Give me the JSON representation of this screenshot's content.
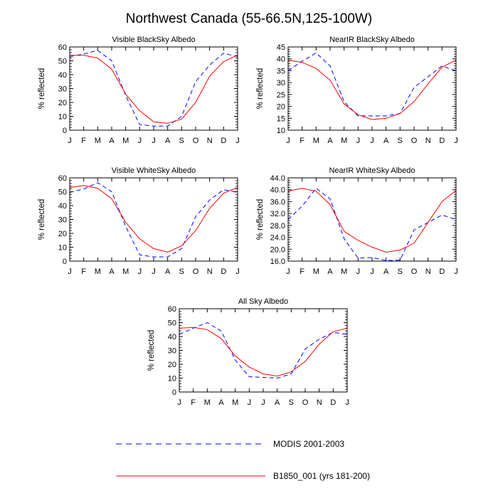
{
  "figure_title": "Northwest Canada (55-66.5N,125-100W)",
  "legend": [
    {
      "label": "MODIS 2001-2003",
      "color": "#0000ff",
      "style": "dashed"
    },
    {
      "label": "B1850_001 (yrs 181-200)",
      "color": "#ff0000",
      "style": "solid"
    }
  ],
  "chart_data": [
    {
      "type": "line",
      "title": "Visible BlackSky Albedo",
      "xlabel": "",
      "ylabel": "% reflected",
      "categories": [
        "J",
        "F",
        "M",
        "A",
        "M",
        "J",
        "J",
        "A",
        "S",
        "O",
        "N",
        "D",
        "J"
      ],
      "ylim": [
        0,
        60
      ],
      "yticks": [
        "0",
        "10",
        "20",
        "30",
        "40",
        "50",
        "60"
      ],
      "series": [
        {
          "name": "MODIS 2001-2003",
          "values": [
            53,
            55,
            57.5,
            50,
            25,
            4,
            3,
            3,
            10,
            35,
            47,
            55.5,
            53
          ]
        },
        {
          "name": "B1850_001 (yrs 181-200)",
          "values": [
            54,
            54,
            52,
            44,
            26,
            14,
            6,
            5,
            8,
            20,
            39,
            49.5,
            54
          ]
        }
      ]
    },
    {
      "type": "line",
      "title": "NearIR BlackSky Albedo",
      "xlabel": "",
      "ylabel": "% reflected",
      "categories": [
        "J",
        "F",
        "M",
        "A",
        "M",
        "J",
        "J",
        "A",
        "S",
        "O",
        "N",
        "D",
        "J"
      ],
      "ylim": [
        10,
        45
      ],
      "yticks": [
        "10",
        "15",
        "20",
        "25",
        "30",
        "35",
        "40",
        "45"
      ],
      "series": [
        {
          "name": "MODIS 2001-2003",
          "values": [
            35,
            39,
            42.5,
            37,
            22,
            16,
            16,
            16,
            17,
            28,
            32.5,
            37,
            35
          ]
        },
        {
          "name": "B1850_001 (yrs 181-200)",
          "values": [
            39.5,
            38.5,
            36,
            31,
            21,
            16.5,
            14.5,
            15,
            17,
            22,
            29.5,
            36.5,
            39.5
          ]
        }
      ]
    },
    {
      "type": "line",
      "title": "Visible WhiteSky Albedo",
      "xlabel": "",
      "ylabel": "% reflected",
      "categories": [
        "J",
        "F",
        "M",
        "A",
        "M",
        "J",
        "J",
        "A",
        "S",
        "O",
        "N",
        "D",
        "J"
      ],
      "ylim": [
        0,
        60
      ],
      "yticks": [
        "0",
        "10",
        "20",
        "30",
        "40",
        "50",
        "60"
      ],
      "series": [
        {
          "name": "MODIS 2001-2003",
          "values": [
            49.5,
            52,
            56.5,
            50,
            25,
            4.5,
            3,
            3,
            9,
            32,
            44,
            51.5,
            49.5
          ]
        },
        {
          "name": "B1850_001 (yrs 181-200)",
          "values": [
            53,
            54.5,
            52.5,
            45,
            28,
            16,
            9,
            6.5,
            11,
            22,
            38,
            49,
            53
          ]
        }
      ]
    },
    {
      "type": "line",
      "title": "NearIR WhiteSky Albedo",
      "xlabel": "",
      "ylabel": "% reflected",
      "categories": [
        "J",
        "F",
        "M",
        "A",
        "M",
        "J",
        "J",
        "A",
        "S",
        "O",
        "N",
        "D",
        "J"
      ],
      "ylim": [
        16,
        44
      ],
      "yticks": [
        "16.0",
        "20.0",
        "24.0",
        "28.0",
        "32.0",
        "36.0",
        "40.0",
        "44.0"
      ],
      "series": [
        {
          "name": "MODIS 2001-2003",
          "values": [
            30,
            34.5,
            40.5,
            37,
            23.5,
            17,
            17.2,
            16.2,
            16.3,
            26.5,
            29,
            31.5,
            30
          ]
        },
        {
          "name": "B1850_001 (yrs 181-200)",
          "values": [
            39.5,
            40.5,
            39.5,
            35,
            26,
            23,
            20.7,
            19,
            19.7,
            22,
            29,
            36,
            39.8
          ]
        }
      ]
    },
    {
      "type": "line",
      "title": "All Sky Albedo",
      "xlabel": "",
      "ylabel": "% reflected",
      "categories": [
        "J",
        "F",
        "M",
        "A",
        "M",
        "J",
        "J",
        "A",
        "S",
        "O",
        "N",
        "D",
        "J"
      ],
      "ylim": [
        0,
        60
      ],
      "yticks": [
        "0",
        "10",
        "20",
        "30",
        "40",
        "50",
        "60"
      ],
      "series": [
        {
          "name": "MODIS 2001-2003",
          "values": [
            41.5,
            46,
            50,
            44,
            23,
            11,
            10.5,
            10,
            13,
            31,
            38,
            43,
            41.5
          ]
        },
        {
          "name": "B1850_001 (yrs 181-200)",
          "values": [
            46,
            46.5,
            45,
            38.5,
            26,
            18,
            13,
            11.5,
            14.5,
            22,
            34.5,
            43.5,
            46
          ]
        }
      ]
    }
  ]
}
